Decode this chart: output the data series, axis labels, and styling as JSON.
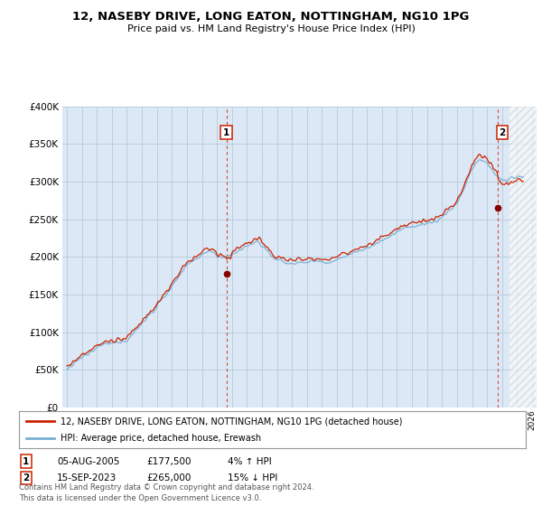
{
  "title": "12, NASEBY DRIVE, LONG EATON, NOTTINGHAM, NG10 1PG",
  "subtitle": "Price paid vs. HM Land Registry's House Price Index (HPI)",
  "background_color": "#ffffff",
  "plot_bg_color": "#dce8f5",
  "grid_color": "#b8cfe0",
  "sale1": {
    "date": "05-AUG-2005",
    "price": 177500,
    "hpi_diff": "4% ↑ HPI",
    "label": "1",
    "year": 2005.625
  },
  "sale2": {
    "date": "15-SEP-2023",
    "price": 265000,
    "hpi_diff": "15% ↓ HPI",
    "label": "2",
    "year": 2023.708
  },
  "legend_line1": "12, NASEBY DRIVE, LONG EATON, NOTTINGHAM, NG10 1PG (detached house)",
  "legend_line2": "HPI: Average price, detached house, Erewash",
  "footer": "Contains HM Land Registry data © Crown copyright and database right 2024.\nThis data is licensed under the Open Government Licence v3.0.",
  "hpi_color": "#7ab0d4",
  "price_color": "#cc2200",
  "vline_color": "#cc2200",
  "sale_marker_color": "#880000",
  "ylim": [
    0,
    400000
  ],
  "yticks": [
    0,
    50000,
    100000,
    150000,
    200000,
    250000,
    300000,
    350000,
    400000
  ],
  "xlim_start": 1994.7,
  "xlim_end": 2026.3,
  "start_year": 1995,
  "end_year": 2026
}
